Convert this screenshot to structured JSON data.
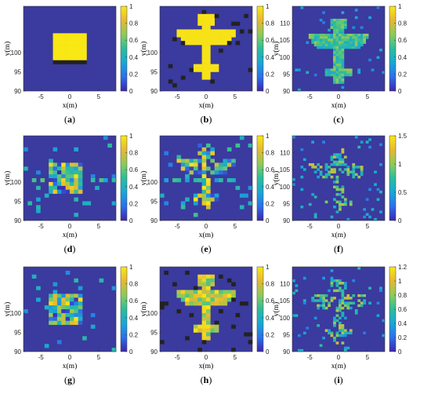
{
  "chart_data": [
    {
      "panel": "a",
      "label_open": "(",
      "label_letter": "a",
      "label_close": ")",
      "type": "heatmap",
      "xlabel": "x(m)",
      "ylabel": "y(m)",
      "xticks": [
        "-5",
        "0",
        "5"
      ],
      "yticks": [
        "100",
        "95",
        "90"
      ],
      "ylim": [
        90,
        112
      ],
      "xlim": [
        -8,
        8
      ],
      "colorbar_ticks": [
        "1",
        "0.8",
        "0.6",
        "0.4",
        "0.2",
        "0"
      ],
      "colorbar_max": 1
    },
    {
      "panel": "b",
      "label_open": "(",
      "label_letter": "b",
      "label_close": ")",
      "type": "heatmap",
      "xlabel": "x(m)",
      "ylabel": "y(m)",
      "xticks": [
        "-5",
        "0",
        "5"
      ],
      "yticks": [
        "100",
        "95",
        "90"
      ],
      "ylim": [
        90,
        112
      ],
      "xlim": [
        -8,
        8
      ],
      "colorbar_ticks": [
        "1",
        "0.8",
        "0.6",
        "0.4",
        "0.2",
        "0"
      ],
      "colorbar_max": 1
    },
    {
      "panel": "c",
      "label_open": "(",
      "label_letter": "c",
      "label_close": ")",
      "type": "heatmap",
      "xlabel": "x(m)",
      "ylabel": "y(m)",
      "xticks": [
        "-5",
        "0",
        "5"
      ],
      "yticks": [
        "110",
        "105",
        "100",
        "95",
        "90"
      ],
      "ylim": [
        90,
        115
      ],
      "xlim": [
        -8,
        8
      ],
      "colorbar_ticks": [
        "1",
        "0.8",
        "0.6",
        "0.4",
        "0.2",
        "0"
      ],
      "colorbar_max": 1
    },
    {
      "panel": "d",
      "label_open": "(",
      "label_letter": "d",
      "label_close": ")",
      "type": "heatmap",
      "xlabel": "x(m)",
      "ylabel": "y(m)",
      "xticks": [
        "-5",
        "0",
        "5"
      ],
      "yticks": [
        "100",
        "95",
        "90"
      ],
      "ylim": [
        90,
        112
      ],
      "xlim": [
        -8,
        8
      ],
      "colorbar_ticks": [
        "1",
        "0.8",
        "0.6",
        "0.4",
        "0.2",
        "0"
      ],
      "colorbar_max": 1
    },
    {
      "panel": "e",
      "label_open": "(",
      "label_letter": "e",
      "label_close": ")",
      "type": "heatmap",
      "xlabel": "x(m)",
      "ylabel": "y(m)",
      "xticks": [
        "-5",
        "0",
        "5"
      ],
      "yticks": [
        "100",
        "95",
        "90"
      ],
      "ylim": [
        90,
        112
      ],
      "xlim": [
        -8,
        8
      ],
      "colorbar_ticks": [
        "1",
        "0.8",
        "0.6",
        "0.4",
        "0.2",
        "0"
      ],
      "colorbar_max": 1
    },
    {
      "panel": "f",
      "label_open": "(",
      "label_letter": "f",
      "label_close": ")",
      "type": "heatmap",
      "xlabel": "x(m)",
      "ylabel": "y(m)",
      "xticks": [
        "-5",
        "0",
        "5"
      ],
      "yticks": [
        "110",
        "105",
        "100",
        "95",
        "90"
      ],
      "ylim": [
        90,
        115
      ],
      "xlim": [
        -8,
        8
      ],
      "colorbar_ticks": [
        "1.5",
        "1",
        "0.5",
        "0"
      ],
      "colorbar_max": 1.5
    },
    {
      "panel": "g",
      "label_open": "(",
      "label_letter": "g",
      "label_close": ")",
      "type": "heatmap",
      "xlabel": "x(m)",
      "ylabel": "y(m)",
      "xticks": [
        "-5",
        "0",
        "5"
      ],
      "yticks": [
        "100",
        "95",
        "90"
      ],
      "ylim": [
        90,
        112
      ],
      "xlim": [
        -8,
        8
      ],
      "colorbar_ticks": [
        "1",
        "0.8",
        "0.6",
        "0.4",
        "0.2",
        "0"
      ],
      "colorbar_max": 1
    },
    {
      "panel": "h",
      "label_open": "(",
      "label_letter": "h",
      "label_close": ")",
      "type": "heatmap",
      "xlabel": "x(m)",
      "ylabel": "y(m)",
      "xticks": [
        "-5",
        "0",
        "5"
      ],
      "yticks": [
        "100",
        "95",
        "90"
      ],
      "ylim": [
        90,
        112
      ],
      "xlim": [
        -8,
        8
      ],
      "colorbar_ticks": [
        "1",
        "0.8",
        "0.6",
        "0.4",
        "0.2",
        "0"
      ],
      "colorbar_max": 1
    },
    {
      "panel": "i",
      "label_open": "(",
      "label_letter": "i",
      "label_close": ")",
      "type": "heatmap",
      "xlabel": "x(m)",
      "ylabel": "y(m)",
      "xticks": [
        "-5",
        "0",
        "5"
      ],
      "yticks": [
        "110",
        "105",
        "100",
        "95",
        "90"
      ],
      "ylim": [
        90,
        115
      ],
      "xlim": [
        -8,
        8
      ],
      "colorbar_ticks": [
        "1.2",
        "1",
        "0.8",
        "0.6",
        "0.4",
        "0.2",
        "0"
      ],
      "colorbar_max": 1.2
    }
  ],
  "colors": {
    "background": "#3b3a9e",
    "colormap": [
      "#3e26a8",
      "#2d6fec",
      "#19a7d6",
      "#2cbd9c",
      "#8ccb5a",
      "#e6b833",
      "#f9e814"
    ]
  }
}
